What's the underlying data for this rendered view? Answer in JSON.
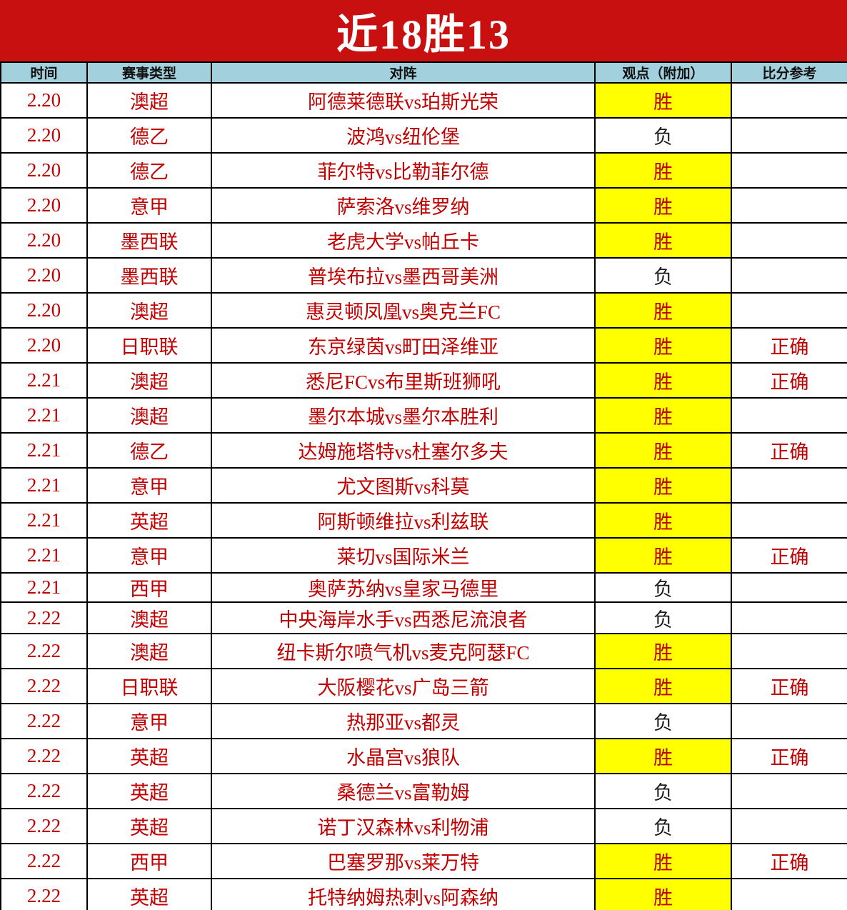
{
  "title": "近18胜13",
  "columns": [
    "时间",
    "赛事类型",
    "对阵",
    "观点（附加）",
    "比分参考"
  ],
  "rows": [
    {
      "date": "2.20",
      "league": "澳超",
      "match": "阿德莱德联vs珀斯光荣",
      "pick": "胜",
      "win": true,
      "result": ""
    },
    {
      "date": "2.20",
      "league": "德乙",
      "match": "波鸿vs纽伦堡",
      "pick": "负",
      "win": false,
      "result": ""
    },
    {
      "date": "2.20",
      "league": "德乙",
      "match": "菲尔特vs比勒菲尔德",
      "pick": "胜",
      "win": true,
      "result": ""
    },
    {
      "date": "2.20",
      "league": "意甲",
      "match": "萨索洛vs维罗纳",
      "pick": "胜",
      "win": true,
      "result": ""
    },
    {
      "date": "2.20",
      "league": "墨西联",
      "match": "老虎大学vs帕丘卡",
      "pick": "胜",
      "win": true,
      "result": ""
    },
    {
      "date": "2.20",
      "league": "墨西联",
      "match": "普埃布拉vs墨西哥美洲",
      "pick": "负",
      "win": false,
      "result": ""
    },
    {
      "date": "2.20",
      "league": "澳超",
      "match": "惠灵顿凤凰vs奥克兰FC",
      "pick": "胜",
      "win": true,
      "result": ""
    },
    {
      "date": "2.20",
      "league": "日职联",
      "match": "东京绿茵vs町田泽维亚",
      "pick": "胜",
      "win": true,
      "result": "正确"
    },
    {
      "date": "2.21",
      "league": "澳超",
      "match": "悉尼FCvs布里斯班狮吼",
      "pick": "胜",
      "win": true,
      "result": "正确"
    },
    {
      "date": "2.21",
      "league": "澳超",
      "match": "墨尔本城vs墨尔本胜利",
      "pick": "胜",
      "win": true,
      "result": ""
    },
    {
      "date": "2.21",
      "league": "德乙",
      "match": "达姆施塔特vs杜塞尔多夫",
      "pick": "胜",
      "win": true,
      "result": "正确"
    },
    {
      "date": "2.21",
      "league": "意甲",
      "match": "尤文图斯vs科莫",
      "pick": "胜",
      "win": true,
      "result": ""
    },
    {
      "date": "2.21",
      "league": "英超",
      "match": "阿斯顿维拉vs利兹联",
      "pick": "胜",
      "win": true,
      "result": ""
    },
    {
      "date": "2.21",
      "league": "意甲",
      "match": "莱切vs国际米兰",
      "pick": "胜",
      "win": true,
      "result": "正确"
    },
    {
      "date": "2.21",
      "league": "西甲",
      "match": "奥萨苏纳vs皇家马德里",
      "pick": "负",
      "win": false,
      "result": ""
    },
    {
      "date": "2.22",
      "league": "澳超",
      "match": "中央海岸水手vs西悉尼流浪者",
      "pick": "负",
      "win": false,
      "result": ""
    },
    {
      "date": "2.22",
      "league": "澳超",
      "match": "纽卡斯尔喷气机vs麦克阿瑟FC",
      "pick": "胜",
      "win": true,
      "result": ""
    },
    {
      "date": "2.22",
      "league": "日职联",
      "match": "大阪樱花vs广岛三箭",
      "pick": "胜",
      "win": true,
      "result": "正确"
    },
    {
      "date": "2.22",
      "league": "意甲",
      "match": "热那亚vs都灵",
      "pick": "负",
      "win": false,
      "result": ""
    },
    {
      "date": "2.22",
      "league": "英超",
      "match": "水晶宫vs狼队",
      "pick": "胜",
      "win": true,
      "result": "正确"
    },
    {
      "date": "2.22",
      "league": "英超",
      "match": "桑德兰vs富勒姆",
      "pick": "负",
      "win": false,
      "result": ""
    },
    {
      "date": "2.22",
      "league": "英超",
      "match": "诺丁汉森林vs利物浦",
      "pick": "负",
      "win": false,
      "result": ""
    },
    {
      "date": "2.22",
      "league": "西甲",
      "match": "巴塞罗那vs莱万特",
      "pick": "胜",
      "win": true,
      "result": "正确"
    },
    {
      "date": "2.22",
      "league": "英超",
      "match": "托特纳姆热刺vs阿森纳",
      "pick": "胜",
      "win": true,
      "result": ""
    }
  ],
  "colors": {
    "banner_red": "#C81010",
    "header_blue": "#A3D0DD",
    "win_highlight_yellow": "#FFFF00",
    "text_red": "#C00000",
    "lose_text_black": "#1A1A1A"
  }
}
